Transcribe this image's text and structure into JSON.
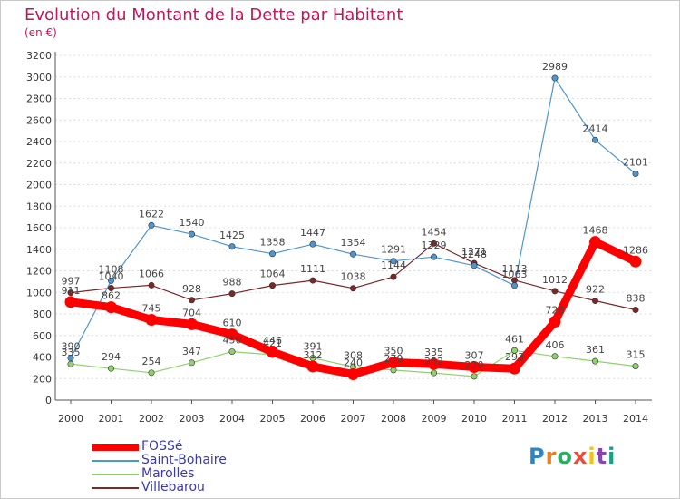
{
  "header": {
    "title": "Evolution du Montant de la Dette par Habitant",
    "subtitle": "(en €)"
  },
  "logo": {
    "text": "Proxiti"
  },
  "colors": {
    "title": "#c2185b",
    "legend_text": "#3a3aaa",
    "grid": "#dddddd",
    "axis_text": "#333333"
  },
  "chart_data": {
    "type": "line",
    "title": "Evolution du Montant de la Dette par Habitant",
    "subtitle": "(en €)",
    "categories": [
      "2000",
      "2001",
      "2002",
      "2003",
      "2004",
      "2005",
      "2006",
      "2007",
      "2008",
      "2009",
      "2010",
      "2011",
      "2012",
      "2013",
      "2014"
    ],
    "ylim": [
      0,
      3200
    ],
    "yticks": [
      0,
      200,
      400,
      600,
      800,
      1000,
      1200,
      1400,
      1600,
      1800,
      2000,
      2200,
      2400,
      2600,
      2800,
      3000,
      3200
    ],
    "grid": true,
    "legend_position": "bottom-left",
    "series": [
      {
        "name": "FOSSé",
        "color": "#ff0000",
        "values": [
          911,
          862,
          745,
          704,
          610,
          446,
          312,
          240,
          350,
          335,
          307,
          293,
          728,
          1468,
          1286
        ]
      },
      {
        "name": "Saint-Bohaire",
        "color": "#4f95cf",
        "values": [
          390,
          1108,
          1622,
          1540,
          1425,
          1358,
          1447,
          1354,
          1291,
          1329,
          1248,
          1063,
          2989,
          2414,
          2101
        ]
      },
      {
        "name": "Marolles",
        "color": "#8fd16a",
        "values": [
          335,
          294,
          254,
          347,
          450,
          421,
          391,
          308,
          279,
          252,
          220,
          461,
          406,
          361,
          315
        ]
      },
      {
        "name": "Villebarou",
        "color": "#7a2828",
        "values": [
          997,
          1040,
          1066,
          928,
          988,
          1064,
          1111,
          1038,
          1144,
          1454,
          1271,
          1113,
          1012,
          922,
          838
        ]
      }
    ]
  }
}
